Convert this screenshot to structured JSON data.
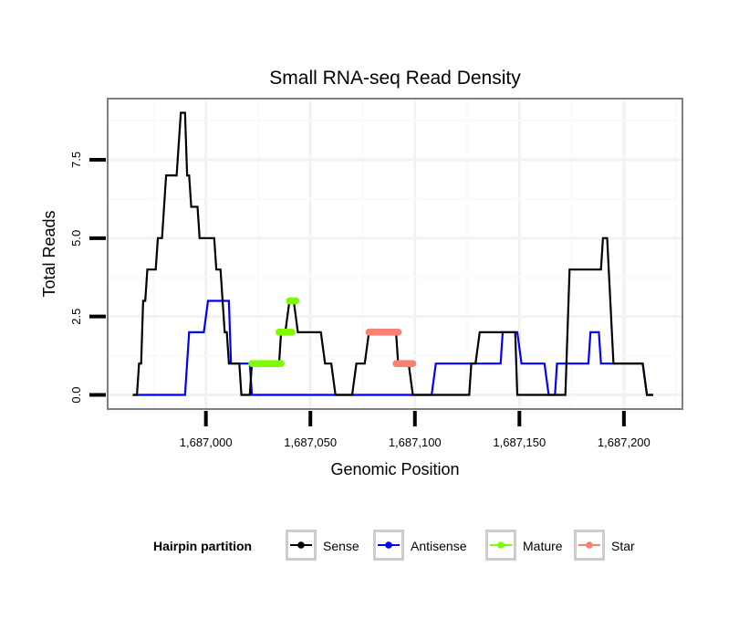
{
  "chart_data": {
    "type": "line",
    "title": "Small RNA-seq Read Density",
    "xlabel": "Genomic Position",
    "ylabel": "Total Reads",
    "x_base": 1687000,
    "xlim": [
      1686953,
      1687228
    ],
    "ylim": [
      -0.45,
      9.45
    ],
    "x_ticks": [
      1687000,
      1687050,
      1687100,
      1687150,
      1687200
    ],
    "x_tick_labels": [
      "1,687,000",
      "1,687,050",
      "1,687,100",
      "1,687,150",
      "1,687,200"
    ],
    "y_ticks": [
      0,
      2.5,
      5,
      7.5
    ],
    "y_tick_labels": [
      "0.0",
      "2.5",
      "5.0",
      "7.5"
    ],
    "grid": true,
    "legend": {
      "title": "Hairpin partition",
      "placement": "bottom",
      "entries": [
        {
          "name": "Sense",
          "color": "#000000"
        },
        {
          "name": "Antisense",
          "color": "#0000ff"
        },
        {
          "name": "Mature",
          "color": "#7cfc00"
        },
        {
          "name": "Star",
          "color": "#fa8072"
        }
      ]
    },
    "series": [
      {
        "name": "Antisense",
        "color": "#0000ff",
        "style": "line",
        "x_offset_from_base": [
          -35,
          -10,
          -8,
          -1,
          1,
          11,
          12,
          21,
          22,
          108,
          110,
          141,
          142,
          149,
          151,
          162,
          164,
          167,
          168,
          183,
          184,
          188,
          189,
          209,
          211,
          214
        ],
        "values": [
          0,
          0,
          2,
          2,
          3,
          3,
          1,
          1,
          0,
          0,
          1,
          1,
          2,
          2,
          1,
          1,
          0,
          0,
          1,
          1,
          2,
          2,
          1,
          1,
          0,
          0
        ]
      },
      {
        "name": "Sense",
        "color": "#000000",
        "style": "line",
        "x_offset_from_base": [
          -35,
          -33,
          -32,
          -31,
          -30,
          -29,
          -28,
          -24,
          -23,
          -21,
          -19,
          -14,
          -12,
          -10,
          -9,
          -8,
          -7,
          -4,
          -3,
          4,
          5,
          7,
          9,
          10,
          11,
          16,
          17,
          21,
          22,
          35,
          36,
          38,
          40,
          42,
          44,
          55,
          57,
          60,
          62,
          70,
          72,
          76,
          78,
          91,
          92,
          97,
          99,
          126,
          127,
          129,
          131,
          148,
          149,
          172,
          174,
          189,
          190,
          192,
          195,
          209,
          211,
          214
        ],
        "values": [
          0,
          0,
          1,
          1,
          3,
          3,
          4,
          4,
          5,
          5,
          7,
          7,
          9,
          9,
          7,
          7,
          6,
          6,
          5,
          5,
          4,
          4,
          2,
          2,
          1,
          1,
          0,
          0,
          1,
          1,
          2,
          2,
          3,
          3,
          2,
          2,
          1,
          1,
          0,
          0,
          1,
          1,
          2,
          2,
          1,
          1,
          0,
          0,
          1,
          1,
          2,
          2,
          0,
          0,
          4,
          4,
          5,
          5,
          1,
          1,
          0,
          0
        ]
      },
      {
        "name": "Mature",
        "color": "#7cfc00",
        "style": "points",
        "segments": [
          {
            "x_start": 22,
            "x_end": 36,
            "value": 1
          },
          {
            "x_start": 35,
            "x_end": 41,
            "value": 2
          },
          {
            "x_start": 40,
            "x_end": 43,
            "value": 3
          }
        ]
      },
      {
        "name": "Star",
        "color": "#fa8072",
        "style": "points",
        "segments": [
          {
            "x_start": 78,
            "x_end": 92,
            "value": 2
          },
          {
            "x_start": 91,
            "x_end": 99,
            "value": 1
          }
        ]
      }
    ]
  }
}
